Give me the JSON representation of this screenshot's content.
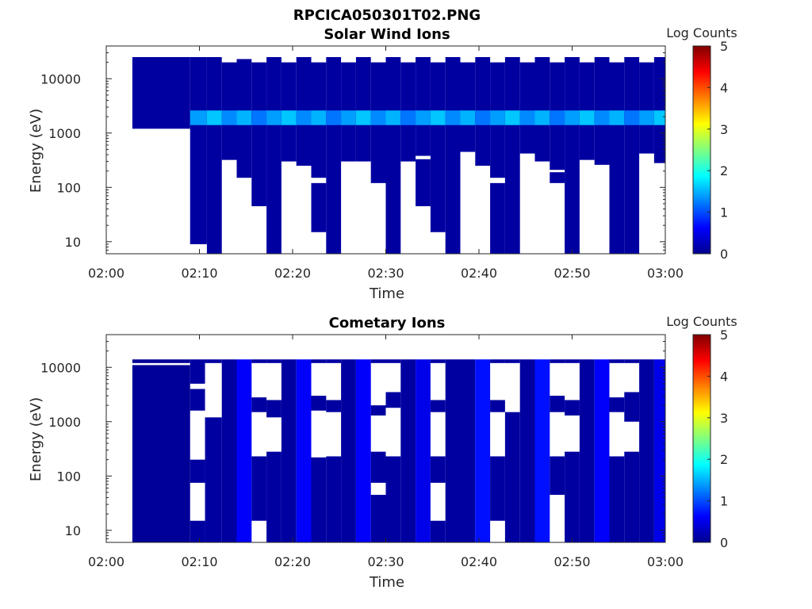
{
  "figure": {
    "title": "RPCICA050301T02.PNG"
  },
  "colors": {
    "colormap": [
      "#00008f",
      "#0000ff",
      "#00ffff",
      "#ffff00",
      "#ff0000",
      "#800000"
    ],
    "background": "#ffffff",
    "no_data": "#ffffff"
  },
  "chart_data": [
    {
      "type": "heatmap",
      "title": "Solar Wind Ions",
      "xlabel": "Time",
      "ylabel": "Energy (eV)",
      "y_scale": "log",
      "x_ticks": [
        "02:00",
        "02:10",
        "02:20",
        "02:30",
        "02:40",
        "02:50",
        "03:00"
      ],
      "y_ticks": [
        "10",
        "100",
        "1000",
        "10000"
      ],
      "x_range_minutes": [
        0,
        60
      ],
      "y_range_eV": [
        6,
        40000
      ],
      "colorbar": {
        "label": "Log Counts",
        "ticks": [
          "0",
          "1",
          "2",
          "3",
          "4",
          "5"
        ],
        "range": [
          0,
          5
        ]
      },
      "data_start_minute": 2.8,
      "background_level": 0.1,
      "peak_band_eV": [
        1400,
        2600
      ],
      "peak_level": 1.6,
      "upper_edge_eV": 20000,
      "columns": [
        {
          "start": 2.8,
          "end": 9.0,
          "top_eV": 25000,
          "bottom_eV": 1200,
          "gaps_eV": []
        },
        {
          "start": 9.0,
          "end": 10.8,
          "top_eV": 25000,
          "bottom_eV": 6,
          "gaps_eV": [
            [
              6,
              9
            ]
          ]
        },
        {
          "start": 10.8,
          "end": 12.4,
          "top_eV": 25000,
          "bottom_eV": 6,
          "gaps_eV": []
        },
        {
          "start": 12.4,
          "end": 14.0,
          "top_eV": 20000,
          "bottom_eV": 320,
          "gaps_eV": []
        },
        {
          "start": 14.0,
          "end": 15.6,
          "top_eV": 23000,
          "bottom_eV": 150,
          "gaps_eV": []
        },
        {
          "start": 15.6,
          "end": 17.2,
          "top_eV": 20000,
          "bottom_eV": 6,
          "gaps_eV": [
            [
              6,
              45
            ]
          ]
        },
        {
          "start": 17.2,
          "end": 18.8,
          "top_eV": 25000,
          "bottom_eV": 6,
          "gaps_eV": []
        },
        {
          "start": 18.8,
          "end": 20.4,
          "top_eV": 20000,
          "bottom_eV": 300,
          "gaps_eV": []
        },
        {
          "start": 20.4,
          "end": 22.0,
          "top_eV": 25000,
          "bottom_eV": 250,
          "gaps_eV": []
        },
        {
          "start": 22.0,
          "end": 23.6,
          "top_eV": 20000,
          "bottom_eV": 6,
          "gaps_eV": [
            [
              6,
              15
            ],
            [
              120,
              150
            ]
          ]
        },
        {
          "start": 23.6,
          "end": 25.2,
          "top_eV": 25000,
          "bottom_eV": 6,
          "gaps_eV": []
        },
        {
          "start": 25.2,
          "end": 26.8,
          "top_eV": 20000,
          "bottom_eV": 300,
          "gaps_eV": []
        },
        {
          "start": 26.8,
          "end": 28.4,
          "top_eV": 25000,
          "bottom_eV": 300,
          "gaps_eV": []
        },
        {
          "start": 28.4,
          "end": 30.0,
          "top_eV": 20000,
          "bottom_eV": 6,
          "gaps_eV": [
            [
              6,
              120
            ]
          ]
        },
        {
          "start": 30.0,
          "end": 31.6,
          "top_eV": 25000,
          "bottom_eV": 6,
          "gaps_eV": []
        },
        {
          "start": 31.6,
          "end": 33.2,
          "top_eV": 20000,
          "bottom_eV": 300,
          "gaps_eV": []
        },
        {
          "start": 33.2,
          "end": 34.8,
          "top_eV": 25000,
          "bottom_eV": 6,
          "gaps_eV": [
            [
              6,
              45
            ],
            [
              330,
              380
            ]
          ]
        },
        {
          "start": 34.8,
          "end": 36.4,
          "top_eV": 20000,
          "bottom_eV": 6,
          "gaps_eV": [
            [
              6,
              15
            ]
          ]
        },
        {
          "start": 36.4,
          "end": 38.0,
          "top_eV": 25000,
          "bottom_eV": 6,
          "gaps_eV": []
        },
        {
          "start": 38.0,
          "end": 39.6,
          "top_eV": 20000,
          "bottom_eV": 450,
          "gaps_eV": []
        },
        {
          "start": 39.6,
          "end": 41.2,
          "top_eV": 25000,
          "bottom_eV": 250,
          "gaps_eV": []
        },
        {
          "start": 41.2,
          "end": 42.8,
          "top_eV": 20000,
          "bottom_eV": 6,
          "gaps_eV": [
            [
              120,
              150
            ]
          ]
        },
        {
          "start": 42.8,
          "end": 44.4,
          "top_eV": 25000,
          "bottom_eV": 6,
          "gaps_eV": []
        },
        {
          "start": 44.4,
          "end": 46.0,
          "top_eV": 20000,
          "bottom_eV": 420,
          "gaps_eV": []
        },
        {
          "start": 46.0,
          "end": 47.6,
          "top_eV": 25000,
          "bottom_eV": 300,
          "gaps_eV": []
        },
        {
          "start": 47.6,
          "end": 49.2,
          "top_eV": 20000,
          "bottom_eV": 120,
          "gaps_eV": [
            [
              190,
              210
            ]
          ]
        },
        {
          "start": 49.2,
          "end": 50.8,
          "top_eV": 25000,
          "bottom_eV": 6,
          "gaps_eV": []
        },
        {
          "start": 50.8,
          "end": 52.4,
          "top_eV": 20000,
          "bottom_eV": 320,
          "gaps_eV": []
        },
        {
          "start": 52.4,
          "end": 54.0,
          "top_eV": 25000,
          "bottom_eV": 6,
          "gaps_eV": [
            [
              6,
              260
            ]
          ]
        },
        {
          "start": 54.0,
          "end": 55.6,
          "top_eV": 20000,
          "bottom_eV": 6,
          "gaps_eV": []
        },
        {
          "start": 55.6,
          "end": 57.2,
          "top_eV": 25000,
          "bottom_eV": 6,
          "gaps_eV": []
        },
        {
          "start": 57.2,
          "end": 58.8,
          "top_eV": 20000,
          "bottom_eV": 420,
          "gaps_eV": []
        },
        {
          "start": 58.8,
          "end": 60.0,
          "top_eV": 25000,
          "bottom_eV": 280,
          "gaps_eV": []
        }
      ]
    },
    {
      "type": "heatmap",
      "title": "Cometary Ions",
      "xlabel": "Time",
      "ylabel": "Energy (eV)",
      "y_scale": "log",
      "x_ticks": [
        "02:00",
        "02:10",
        "02:20",
        "02:30",
        "02:40",
        "02:50",
        "03:00"
      ],
      "y_ticks": [
        "10",
        "100",
        "1000",
        "10000"
      ],
      "x_range_minutes": [
        0,
        60
      ],
      "y_range_eV": [
        6,
        40000
      ],
      "colorbar": {
        "label": "Log Counts",
        "ticks": [
          "0",
          "1",
          "2",
          "3",
          "4",
          "5"
        ],
        "range": [
          0,
          5
        ]
      },
      "data_start_minute": 2.8,
      "background_level": 0.05,
      "upper_edge_eV": 14000,
      "columns": [
        {
          "start": 2.8,
          "end": 9.0,
          "top_eV": 14000,
          "bottom_eV": 6,
          "gaps_eV": [
            [
              11000,
              12000
            ]
          ],
          "level": 0.05
        },
        {
          "start": 9.0,
          "end": 10.6,
          "top_eV": 14000,
          "bottom_eV": 6,
          "gaps_eV": [
            [
              15,
              75
            ],
            [
              200,
              1600
            ],
            [
              4000,
              5000
            ]
          ],
          "level": 0.1
        },
        {
          "start": 10.6,
          "end": 12.4,
          "top_eV": 14000,
          "bottom_eV": 6,
          "gaps_eV": [
            [
              1200,
              12000
            ]
          ],
          "level": 0.1
        },
        {
          "start": 12.4,
          "end": 14.0,
          "top_eV": 14000,
          "bottom_eV": 6,
          "gaps_eV": [],
          "level": 0.1
        },
        {
          "start": 14.0,
          "end": 15.6,
          "top_eV": 14000,
          "bottom_eV": 6,
          "gaps_eV": [],
          "level": 0.6
        },
        {
          "start": 15.6,
          "end": 17.2,
          "top_eV": 14000,
          "bottom_eV": 6,
          "gaps_eV": [
            [
              6,
              15
            ],
            [
              230,
              1500
            ],
            [
              2800,
              12000
            ]
          ],
          "level": 0.1
        },
        {
          "start": 17.2,
          "end": 18.8,
          "top_eV": 14000,
          "bottom_eV": 6,
          "gaps_eV": [
            [
              280,
              1200
            ],
            [
              2500,
              12000
            ]
          ],
          "level": 0.1
        },
        {
          "start": 18.8,
          "end": 20.4,
          "top_eV": 14000,
          "bottom_eV": 6,
          "gaps_eV": [],
          "level": 0.1
        },
        {
          "start": 20.4,
          "end": 22.0,
          "top_eV": 14000,
          "bottom_eV": 6,
          "gaps_eV": [],
          "level": 0.6
        },
        {
          "start": 22.0,
          "end": 23.6,
          "top_eV": 14000,
          "bottom_eV": 6,
          "gaps_eV": [
            [
              220,
              1600
            ],
            [
              3000,
              12000
            ]
          ],
          "level": 0.1
        },
        {
          "start": 23.6,
          "end": 25.2,
          "top_eV": 14000,
          "bottom_eV": 6,
          "gaps_eV": [
            [
              230,
              1500
            ],
            [
              2500,
              12000
            ]
          ],
          "level": 0.1
        },
        {
          "start": 25.2,
          "end": 26.8,
          "top_eV": 14000,
          "bottom_eV": 6,
          "gaps_eV": [],
          "level": 0.1
        },
        {
          "start": 26.8,
          "end": 28.4,
          "top_eV": 14000,
          "bottom_eV": 6,
          "gaps_eV": [],
          "level": 0.6
        },
        {
          "start": 28.4,
          "end": 30.0,
          "top_eV": 14000,
          "bottom_eV": 6,
          "gaps_eV": [
            [
              45,
              75
            ],
            [
              280,
              1300
            ],
            [
              2000,
              12000
            ]
          ],
          "level": 0.1
        },
        {
          "start": 30.0,
          "end": 31.6,
          "top_eV": 14000,
          "bottom_eV": 6,
          "gaps_eV": [
            [
              230,
              1800
            ],
            [
              3500,
              12000
            ]
          ],
          "level": 0.1
        },
        {
          "start": 31.6,
          "end": 33.2,
          "top_eV": 14000,
          "bottom_eV": 6,
          "gaps_eV": [],
          "level": 0.1
        },
        {
          "start": 33.2,
          "end": 34.8,
          "top_eV": 14000,
          "bottom_eV": 6,
          "gaps_eV": [],
          "level": 0.5
        },
        {
          "start": 34.8,
          "end": 36.4,
          "top_eV": 14000,
          "bottom_eV": 6,
          "gaps_eV": [
            [
              15,
              75
            ],
            [
              230,
              1500
            ],
            [
              2500,
              12000
            ]
          ],
          "level": 0.1
        },
        {
          "start": 36.4,
          "end": 38.0,
          "top_eV": 14000,
          "bottom_eV": 6,
          "gaps_eV": [],
          "level": 0.1
        },
        {
          "start": 38.0,
          "end": 39.6,
          "top_eV": 14000,
          "bottom_eV": 6,
          "gaps_eV": [],
          "level": 0.1
        },
        {
          "start": 39.6,
          "end": 41.2,
          "top_eV": 14000,
          "bottom_eV": 6,
          "gaps_eV": [],
          "level": 0.7
        },
        {
          "start": 41.2,
          "end": 42.8,
          "top_eV": 14000,
          "bottom_eV": 6,
          "gaps_eV": [
            [
              6,
              15
            ],
            [
              230,
              1500
            ],
            [
              2500,
              12000
            ]
          ],
          "level": 0.1
        },
        {
          "start": 42.8,
          "end": 44.4,
          "top_eV": 14000,
          "bottom_eV": 6,
          "gaps_eV": [
            [
              1500,
              12000
            ]
          ],
          "level": 0.1
        },
        {
          "start": 44.4,
          "end": 46.0,
          "top_eV": 14000,
          "bottom_eV": 6,
          "gaps_eV": [],
          "level": 0.1
        },
        {
          "start": 46.0,
          "end": 47.6,
          "top_eV": 14000,
          "bottom_eV": 6,
          "gaps_eV": [],
          "level": 0.7
        },
        {
          "start": 47.6,
          "end": 49.2,
          "top_eV": 14000,
          "bottom_eV": 6,
          "gaps_eV": [
            [
              6,
              45
            ],
            [
              230,
              1500
            ],
            [
              3000,
              12000
            ]
          ],
          "level": 0.1
        },
        {
          "start": 49.2,
          "end": 50.8,
          "top_eV": 14000,
          "bottom_eV": 6,
          "gaps_eV": [
            [
              280,
              1300
            ],
            [
              2500,
              12000
            ]
          ],
          "level": 0.1
        },
        {
          "start": 50.8,
          "end": 52.4,
          "top_eV": 14000,
          "bottom_eV": 6,
          "gaps_eV": [],
          "level": 0.1
        },
        {
          "start": 52.4,
          "end": 54.0,
          "top_eV": 14000,
          "bottom_eV": 6,
          "gaps_eV": [],
          "level": 0.6
        },
        {
          "start": 54.0,
          "end": 55.6,
          "top_eV": 14000,
          "bottom_eV": 6,
          "gaps_eV": [
            [
              230,
              1500
            ],
            [
              2800,
              12000
            ]
          ],
          "level": 0.1
        },
        {
          "start": 55.6,
          "end": 57.2,
          "top_eV": 14000,
          "bottom_eV": 6,
          "gaps_eV": [
            [
              280,
              1000
            ],
            [
              3500,
              12000
            ]
          ],
          "level": 0.1
        },
        {
          "start": 57.2,
          "end": 58.8,
          "top_eV": 14000,
          "bottom_eV": 6,
          "gaps_eV": [],
          "level": 0.1
        },
        {
          "start": 58.8,
          "end": 60.0,
          "top_eV": 14000,
          "bottom_eV": 6,
          "gaps_eV": [],
          "level": 0.5
        }
      ]
    }
  ]
}
